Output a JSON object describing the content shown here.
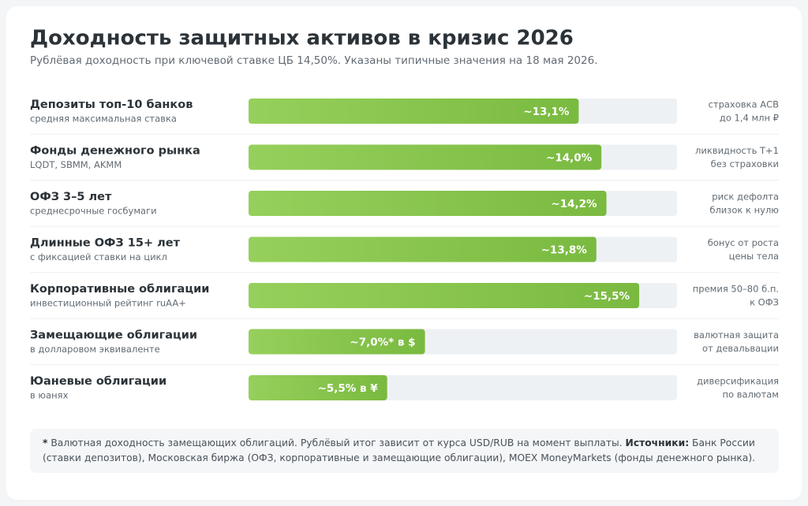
{
  "chart_data": {
    "type": "bar",
    "orientation": "horizontal",
    "title": "Доходность защитных активов в кризис 2026",
    "subtitle": "Рублёвая доходность при ключевой ставке ЦБ 14,50%. Указаны типичные значения на 18 мая 2026.",
    "categories": [
      "Депозиты топ-10 банков",
      "Фонды денежного рынка",
      "ОФЗ 3–5 лет",
      "Длинные ОФЗ 15+ лет",
      "Корпоративные облигации",
      "Замещающие облигации",
      "Юаневые облигации"
    ],
    "category_notes": [
      "средняя максимальная ставка",
      "LQDT, SBMM, AKMM",
      "среднесрочные госбумаги",
      "с фиксацией ставки на цикл",
      "инвестиционный рейтинг ruAA+",
      "в долларовом эквиваленте",
      "в юанях"
    ],
    "values": [
      13.1,
      14.0,
      14.2,
      13.8,
      15.5,
      7.0,
      5.5
    ],
    "value_labels": [
      "~13,1%",
      "~14,0%",
      "~14,2%",
      "~13,8%",
      "~15,5%",
      "~7,0%* в $",
      "~5,5% в ¥"
    ],
    "comments": [
      [
        "страховка АСВ",
        "до 1,4 млн ₽"
      ],
      [
        "ликвидность Т+1",
        "без страховки"
      ],
      [
        "риск дефолта",
        "близок к нулю"
      ],
      [
        "бонус от роста",
        "цены тела"
      ],
      [
        "премия 50–80 б.п.",
        "к ОФЗ"
      ],
      [
        "валютная защита",
        "от девальвации"
      ],
      [
        "диверсификация",
        "по валютам"
      ]
    ],
    "color": "#7aba40",
    "color_light": "#96d05c",
    "track_color": "#eef1f4",
    "xlim": [
      0,
      17
    ],
    "footnote": {
      "marker": "*",
      "text": "Валютная доходность замещающих облигаций. Рублёвый итог зависит от курса USD/RUB на момент выплаты.",
      "sources_label": "Источники:",
      "sources": "Банк России (ставки депозитов), Московская биржа (ОФЗ, корпоративные и замещающие облигации), MOEX MoneyMarkets (фонды денежного рынка)."
    }
  }
}
